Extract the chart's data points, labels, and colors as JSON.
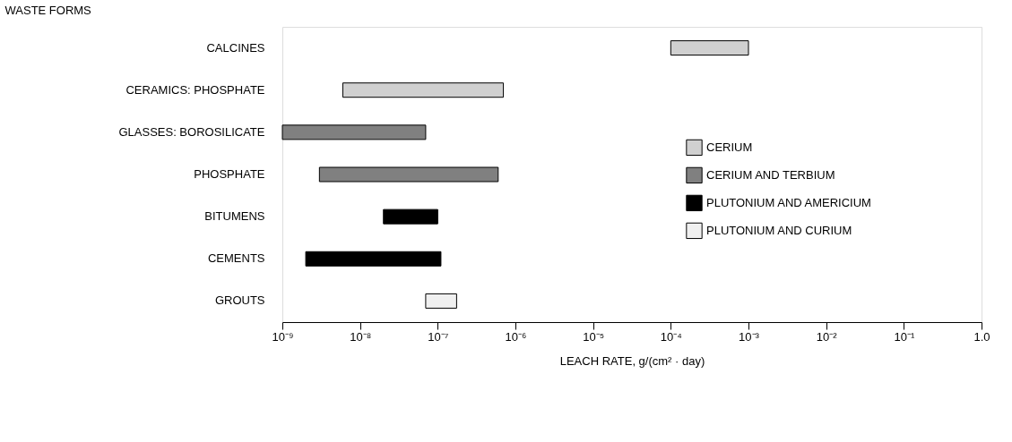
{
  "chart_data": {
    "type": "bar",
    "orientation": "horizontal",
    "log": "x",
    "grid": false,
    "legend": "right",
    "xlabel": "LEACH RATE, g/(cm² · day)",
    "ylabel": "WASTE FORMS",
    "categories": [
      "CALCINES",
      "CERAMICS:  PHOSPHATE",
      "GLASSES:  BOROSILICATE",
      "PHOSPHATE",
      "BITUMENS",
      "CEMENTS",
      "GROUTS"
    ],
    "series": [
      {
        "name": "CERIUM",
        "color": "#d0d0d0",
        "base": [
          0.0001,
          6e-09,
          null,
          null,
          null,
          null,
          null
        ],
        "values": [
          0.0009,
          6.94e-07,
          null,
          null,
          null,
          null,
          null
        ]
      },
      {
        "name": "CERIUM AND TERBIUM",
        "color": "#808080",
        "base": [
          null,
          null,
          1e-09,
          3e-09,
          null,
          null,
          null
        ],
        "values": [
          null,
          null,
          6.9e-08,
          5.97e-07,
          null,
          null,
          null
        ]
      },
      {
        "name": "PLUTONIUM AND AMERICIUM",
        "color": "#000000",
        "base": [
          null,
          null,
          null,
          null,
          2e-08,
          2e-09,
          null
        ],
        "values": [
          null,
          null,
          null,
          null,
          8e-08,
          1.08e-07,
          null
        ]
      },
      {
        "name": "PLUTONIUM AND CURIUM",
        "color": "#f0f0f0",
        "base": [
          null,
          null,
          null,
          null,
          null,
          null,
          7e-08
        ],
        "values": [
          null,
          null,
          null,
          null,
          null,
          null,
          1.05e-07
        ]
      }
    ],
    "xlim": [
      1e-09,
      1
    ],
    "xticks": [
      {
        "value": 1e-09,
        "label": "10⁻⁹"
      },
      {
        "value": 1e-08,
        "label": "10⁻⁸"
      },
      {
        "value": 1e-07,
        "label": "10⁻⁷"
      },
      {
        "value": 1e-06,
        "label": "10⁻⁶"
      },
      {
        "value": 1e-05,
        "label": "10⁻⁵"
      },
      {
        "value": 0.0001,
        "label": "10⁻⁴"
      },
      {
        "value": 0.001,
        "label": "10⁻³"
      },
      {
        "value": 0.01,
        "label": "10⁻²"
      },
      {
        "value": 0.1,
        "label": "10⁻¹"
      },
      {
        "value": 1,
        "label": "1.0"
      }
    ]
  }
}
